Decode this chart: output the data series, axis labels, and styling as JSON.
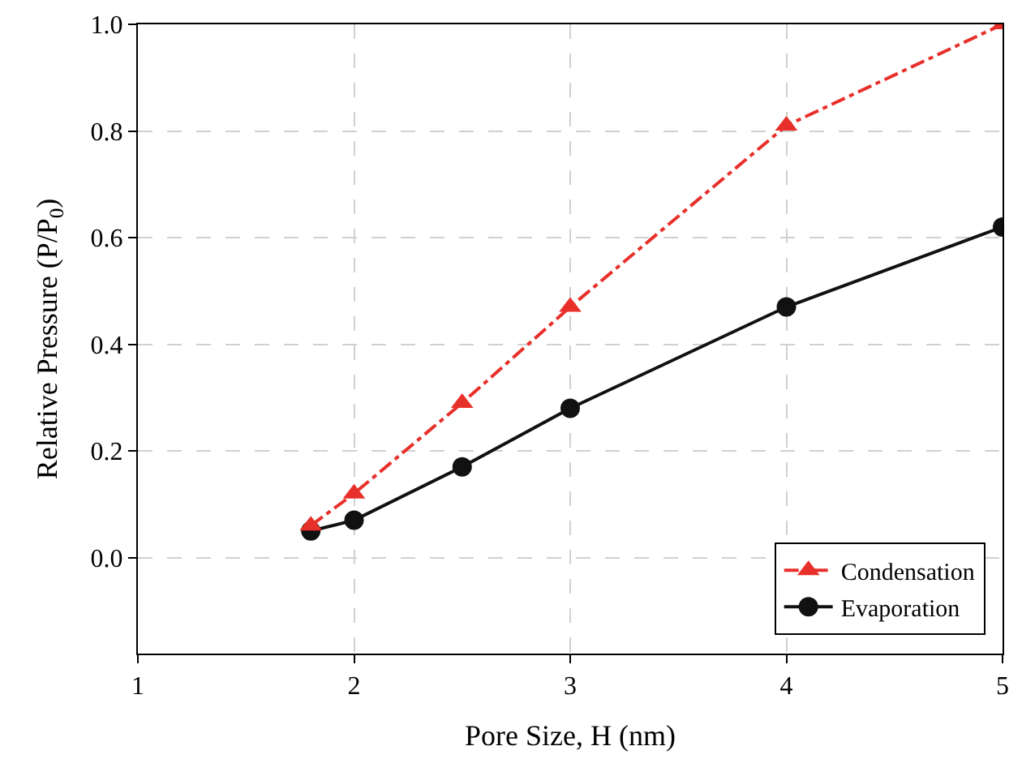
{
  "chart_data": {
    "type": "line",
    "xlabel": "Pore Size, H (nm)",
    "ylabel": "Relative Pressure (P/P$_{0}$)",
    "xlim": [
      1,
      5
    ],
    "xticks": [
      1,
      2,
      3,
      4,
      5
    ],
    "ylim": [
      -0.18,
      1.0
    ],
    "yticks": [
      {
        "value": 0,
        "label": "0.0"
      },
      {
        "value": 0.2,
        "label": "0.2"
      },
      {
        "value": 0.4,
        "label": "0.4"
      },
      {
        "value": 0.6,
        "label": "0.6"
      },
      {
        "value": 0.8,
        "label": "0.8"
      },
      {
        "value": 1.0,
        "label": "1.0"
      }
    ],
    "grid": true,
    "legend": "bottom right",
    "x": [
      1.8,
      2,
      2.5,
      3,
      4,
      5
    ],
    "series": [
      {
        "name": "Condensation",
        "color": "#e8302a",
        "marker": "triangle",
        "line_style": "dashdot",
        "values": [
          0.06,
          0.12,
          0.29,
          0.47,
          0.81,
          1.0
        ]
      },
      {
        "name": "Evaporation",
        "color": "#111111",
        "marker": "circle",
        "line_style": "solid",
        "values": [
          0.05,
          0.07,
          0.17,
          0.28,
          0.47,
          0.62
        ]
      }
    ]
  }
}
